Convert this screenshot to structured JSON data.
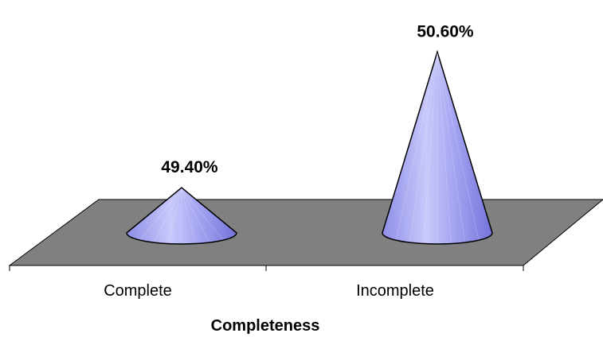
{
  "chart_data": {
    "type": "bar",
    "shape": "cone-3d",
    "categories": [
      "Complete",
      "Incomplete"
    ],
    "values": [
      49.4,
      50.6
    ],
    "data_labels": [
      "49.40%",
      "50.60%"
    ],
    "xlabel": "Completeness",
    "ylabel": "",
    "ylim": [
      49.0,
      50.75
    ],
    "grid": false,
    "legend": "none",
    "colors": {
      "cone_light": "#dcdcff",
      "cone_mid": "#a3a3f0",
      "cone_dark": "#6f6fd8",
      "floor": "#808080",
      "axis": "#000000"
    }
  }
}
